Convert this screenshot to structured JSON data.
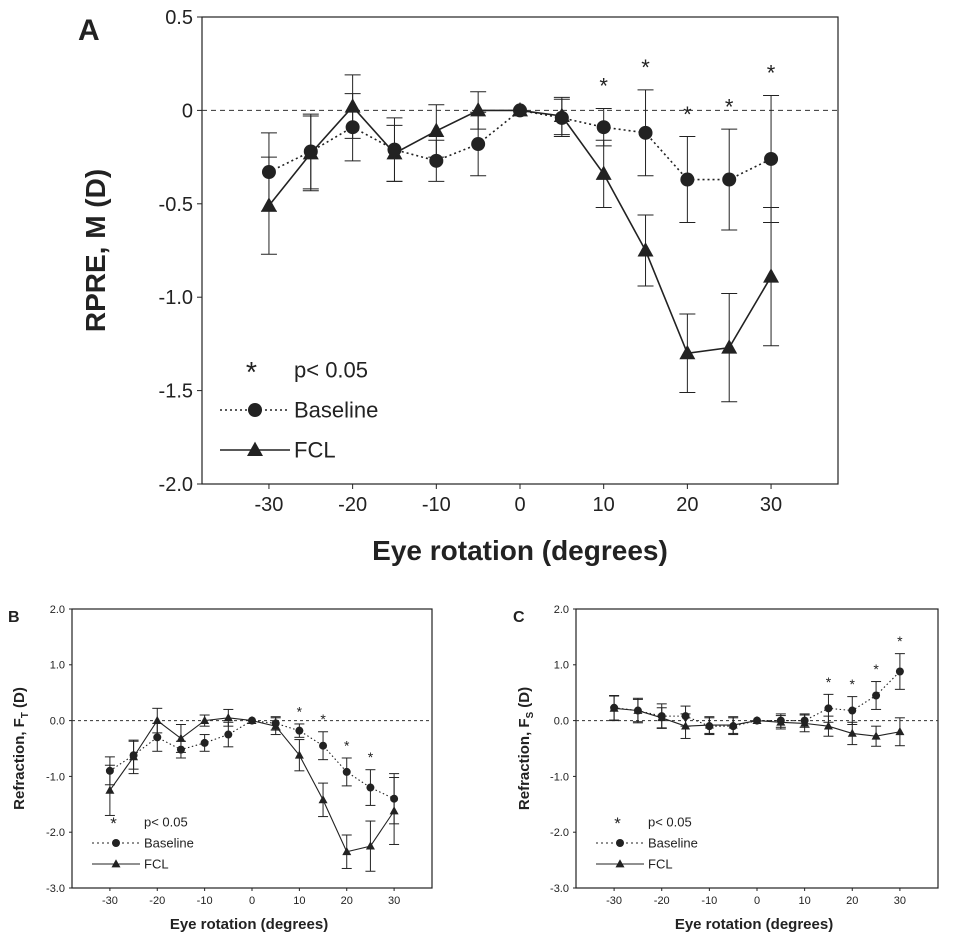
{
  "chart_data": [
    {
      "panel": "A",
      "type": "line",
      "xlabel": "Eye rotation (degrees)",
      "ylabel": "RPRE, M (D)",
      "xlim": [
        -38,
        38
      ],
      "ylim": [
        -2.0,
        0.5
      ],
      "x_ticks": [
        -30,
        -20,
        -10,
        0,
        10,
        20,
        30
      ],
      "y_ticks": [
        0.5,
        0,
        -0.5,
        -1.0,
        -1.5,
        -2.0
      ],
      "y_tick_labels": [
        "0.5",
        "0",
        "-0.5",
        "-1.0",
        "-1.5",
        "-2.0"
      ],
      "reference_line": 0,
      "x": [
        -30,
        -25,
        -20,
        -15,
        -10,
        -5,
        0,
        5,
        10,
        15,
        20,
        25,
        30
      ],
      "series": [
        {
          "name": "Baseline",
          "marker": "circle",
          "line": "dotted",
          "values": [
            -0.33,
            -0.22,
            -0.09,
            -0.21,
            -0.27,
            -0.18,
            0,
            -0.04,
            -0.09,
            -0.12,
            -0.37,
            -0.37,
            -0.26
          ],
          "errors": [
            0.21,
            0.2,
            0.18,
            0.17,
            0.11,
            0.17,
            0,
            0.1,
            0.1,
            0.23,
            0.23,
            0.27,
            0.34
          ]
        },
        {
          "name": "FCL",
          "marker": "triangle",
          "line": "solid",
          "values": [
            -0.51,
            -0.23,
            0.02,
            -0.23,
            -0.11,
            0.0,
            0,
            -0.03,
            -0.34,
            -0.75,
            -1.3,
            -1.27,
            -0.89
          ],
          "errors": [
            0.26,
            0.2,
            0.17,
            0.15,
            0.14,
            0.1,
            0,
            0.1,
            0.18,
            0.19,
            0.21,
            0.29,
            0.37
          ]
        }
      ],
      "significant_x": [
        10,
        15,
        20,
        25,
        30
      ],
      "significance_label": "p< 0.05",
      "panel_label": "A",
      "legend": "bottom-left"
    },
    {
      "panel": "B",
      "type": "line",
      "xlabel": "Eye rotation (degrees)",
      "ylabel_main": "Refraction, F",
      "ylabel_sub": "T",
      "ylabel_tail": " (D)",
      "xlim": [
        -38,
        38
      ],
      "ylim": [
        -3.0,
        2.0
      ],
      "x_ticks": [
        -30,
        -20,
        -10,
        0,
        10,
        20,
        30
      ],
      "y_ticks": [
        2.0,
        1.0,
        0.0,
        -1.0,
        -2.0,
        -3.0
      ],
      "y_tick_labels": [
        "2.0",
        "1.0",
        "0.0",
        "-1.0",
        "-2.0",
        "-3.0"
      ],
      "reference_line": 0,
      "x": [
        -30,
        -25,
        -20,
        -15,
        -10,
        -5,
        0,
        5,
        10,
        15,
        20,
        25,
        30
      ],
      "series": [
        {
          "name": "Baseline",
          "marker": "circle",
          "line": "dotted",
          "values": [
            -0.9,
            -0.62,
            -0.3,
            -0.52,
            -0.4,
            -0.25,
            0,
            -0.05,
            -0.18,
            -0.45,
            -0.92,
            -1.2,
            -1.4
          ],
          "errors": [
            0.25,
            0.25,
            0.25,
            0.15,
            0.15,
            0.22,
            0,
            0.12,
            0.12,
            0.25,
            0.25,
            0.32,
            0.45
          ]
        },
        {
          "name": "FCL",
          "marker": "triangle",
          "line": "solid",
          "values": [
            -1.25,
            -0.65,
            0.0,
            -0.32,
            0.0,
            0.05,
            0,
            -0.1,
            -0.62,
            -1.42,
            -2.35,
            -2.25,
            -1.62
          ],
          "errors": [
            0.45,
            0.3,
            0.22,
            0.25,
            0.1,
            0.15,
            0,
            0.15,
            0.28,
            0.3,
            0.3,
            0.45,
            0.6
          ]
        }
      ],
      "significant_x": [
        10,
        15,
        20,
        25
      ],
      "significance_label": "p< 0.05",
      "panel_label": "B",
      "legend": "bottom-left"
    },
    {
      "panel": "C",
      "type": "line",
      "xlabel": "Eye rotation (degrees)",
      "ylabel_main": "Refraction, F",
      "ylabel_sub": "S",
      "ylabel_tail": " (D)",
      "xlim": [
        -38,
        38
      ],
      "ylim": [
        -3.0,
        2.0
      ],
      "x_ticks": [
        -30,
        -20,
        -10,
        0,
        10,
        20,
        30
      ],
      "y_ticks": [
        2.0,
        1.0,
        0.0,
        -1.0,
        -2.0,
        -3.0
      ],
      "y_tick_labels": [
        "2.0",
        "1.0",
        "0.0",
        "-1.0",
        "-2.0",
        "-3.0"
      ],
      "reference_line": 0,
      "x": [
        -30,
        -25,
        -20,
        -15,
        -10,
        -5,
        0,
        5,
        10,
        15,
        20,
        25,
        30
      ],
      "series": [
        {
          "name": "Baseline",
          "marker": "circle",
          "line": "dotted",
          "values": [
            0.23,
            0.18,
            0.08,
            0.08,
            -0.1,
            -0.1,
            0,
            0.0,
            0.0,
            0.22,
            0.18,
            0.45,
            0.88
          ],
          "errors": [
            0.22,
            0.22,
            0.22,
            0.18,
            0.15,
            0.15,
            0,
            0.12,
            0.12,
            0.25,
            0.25,
            0.25,
            0.32
          ]
        },
        {
          "name": "FCL",
          "marker": "triangle",
          "line": "solid",
          "values": [
            0.22,
            0.18,
            0.05,
            -0.1,
            -0.08,
            -0.08,
            0,
            -0.03,
            -0.05,
            -0.1,
            -0.23,
            -0.28,
            -0.2
          ],
          "errors": [
            0.22,
            0.2,
            0.18,
            0.22,
            0.15,
            0.15,
            0,
            0.12,
            0.15,
            0.18,
            0.2,
            0.18,
            0.25
          ]
        }
      ],
      "significant_x": [
        15,
        20,
        25,
        30
      ],
      "significance_label": "p< 0.05",
      "panel_label": "C",
      "legend": "bottom-left"
    }
  ]
}
